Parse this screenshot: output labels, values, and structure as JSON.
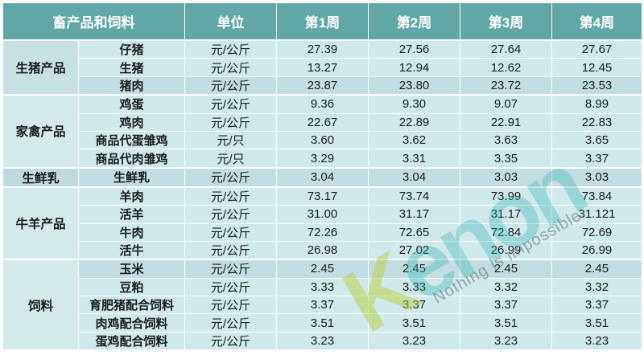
{
  "chart_data": {
    "type": "table",
    "header": {
      "product_col": "畜产品和饲料",
      "unit_col": "单位",
      "week_cols": [
        "第1周",
        "第2周",
        "第3周",
        "第4周"
      ]
    },
    "groups": [
      {
        "category": "生猪产品",
        "tone": "dark",
        "rows": [
          {
            "name": "仔猪",
            "unit": "元/公斤",
            "values": [
              "27.39",
              "27.56",
              "27.64",
              "27.67"
            ],
            "shaded": false
          },
          {
            "name": "生猪",
            "unit": "元/公斤",
            "values": [
              "13.27",
              "12.94",
              "12.62",
              "12.45"
            ],
            "shaded": false
          },
          {
            "name": "猪肉",
            "unit": "元/公斤",
            "values": [
              "23.87",
              "23.80",
              "23.72",
              "23.53"
            ],
            "shaded": true
          }
        ]
      },
      {
        "category": "家禽产品",
        "tone": "light",
        "rows": [
          {
            "name": "鸡蛋",
            "unit": "元/公斤",
            "values": [
              "9.36",
              "9.30",
              "9.07",
              "8.99"
            ],
            "shaded": false
          },
          {
            "name": "鸡肉",
            "unit": "元/公斤",
            "values": [
              "22.67",
              "22.89",
              "22.91",
              "22.83"
            ],
            "shaded": false
          },
          {
            "name": "商品代蛋雏鸡",
            "unit": "元/只",
            "values": [
              "3.60",
              "3.62",
              "3.63",
              "3.65"
            ],
            "shaded": false
          },
          {
            "name": "商品代肉雏鸡",
            "unit": "元/只",
            "values": [
              "3.29",
              "3.31",
              "3.35",
              "3.37"
            ],
            "shaded": false
          }
        ]
      },
      {
        "category": "生鲜乳",
        "tone": "darker",
        "rows": [
          {
            "name": "生鲜乳",
            "unit": "元/公斤",
            "values": [
              "3.04",
              "3.04",
              "3.03",
              "3.03"
            ],
            "shaded": true
          }
        ]
      },
      {
        "category": "牛羊产品",
        "tone": "light",
        "rows": [
          {
            "name": "羊肉",
            "unit": "元/公斤",
            "values": [
              "73.17",
              "73.74",
              "73.99",
              "73.84"
            ],
            "shaded": false
          },
          {
            "name": "活羊",
            "unit": "元/公斤",
            "values": [
              "31.00",
              "31.17",
              "31.17",
              "31.121"
            ],
            "shaded": false
          },
          {
            "name": "牛肉",
            "unit": "元/公斤",
            "values": [
              "72.26",
              "72.65",
              "72.84",
              "72.69"
            ],
            "shaded": false
          },
          {
            "name": "活牛",
            "unit": "元/公斤",
            "values": [
              "26.98",
              "27.02",
              "26.99",
              "26.99"
            ],
            "shaded": false
          }
        ]
      },
      {
        "category": "饲料",
        "tone": "light",
        "rows": [
          {
            "name": "玉米",
            "unit": "元/公斤",
            "values": [
              "2.45",
              "2.45",
              "2.45",
              "2.45"
            ],
            "shaded": true
          },
          {
            "name": "豆粕",
            "unit": "元/公斤",
            "values": [
              "3.33",
              "3.33",
              "3.32",
              "3.32"
            ],
            "shaded": false
          },
          {
            "name": "育肥猪配合饲料",
            "unit": "元/公斤",
            "values": [
              "3.37",
              "3.37",
              "3.37",
              "3.37"
            ],
            "shaded": false
          },
          {
            "name": "肉鸡配合饲料",
            "unit": "元/公斤",
            "values": [
              "3.51",
              "3.51",
              "3.51",
              "3.51"
            ],
            "shaded": false
          },
          {
            "name": "蛋鸡配合饲料",
            "unit": "元/公斤",
            "values": [
              "3.23",
              "3.23",
              "3.23",
              "3.23"
            ],
            "shaded": false
          }
        ]
      }
    ]
  },
  "watermark": {
    "brand_initial": "K",
    "brand_rest": "enon",
    "slogan": "Nothing is impossible"
  },
  "colors": {
    "header_bg": "#60a7a5",
    "header_text": "#ffffff",
    "text_color": "#1c1c1c",
    "row_light": "#cfe8ea",
    "row_shaded": "#c2dde1",
    "cat_light": "#d4e9ea",
    "cat_dark": "#c9e0e3",
    "cat_darker": "#bfdade",
    "wm_teal": "rgba(40,178,175,0.32)",
    "wm_accent": "rgba(186,206,62,0.50)",
    "wm_slogan": "rgba(118,134,137,0.70)"
  }
}
